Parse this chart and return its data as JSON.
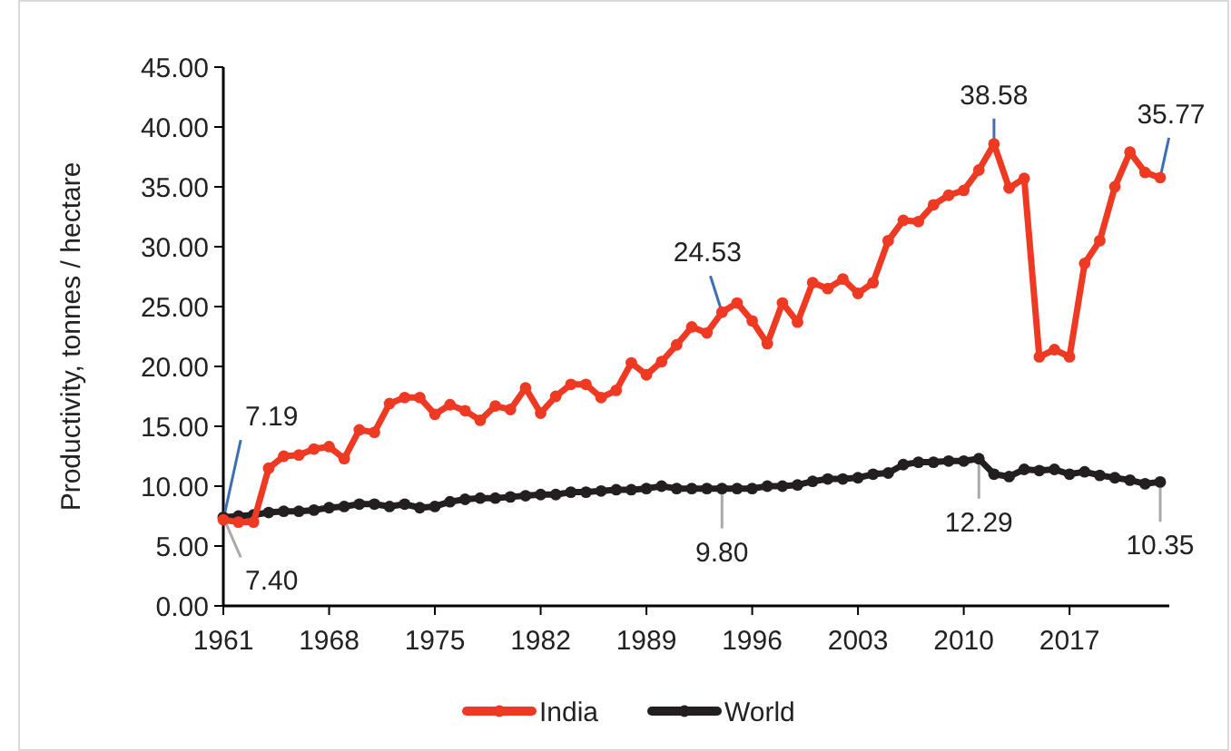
{
  "chart_data": {
    "type": "line",
    "ylabel": "Productivity, tonnes / hectare",
    "x": [
      1961,
      1962,
      1963,
      1964,
      1965,
      1966,
      1967,
      1968,
      1969,
      1970,
      1971,
      1972,
      1973,
      1974,
      1975,
      1976,
      1977,
      1978,
      1979,
      1980,
      1981,
      1982,
      1983,
      1984,
      1985,
      1986,
      1987,
      1988,
      1989,
      1990,
      1991,
      1992,
      1993,
      1994,
      1995,
      1996,
      1997,
      1998,
      1999,
      2000,
      2001,
      2002,
      2003,
      2004,
      2005,
      2006,
      2007,
      2008,
      2009,
      2010,
      2011,
      2012,
      2013,
      2014,
      2015,
      2016,
      2017,
      2018,
      2019,
      2020,
      2021,
      2022,
      2023
    ],
    "series": [
      {
        "name": "India",
        "color": "#ee3a23",
        "values": [
          7.19,
          7.0,
          7.0,
          11.5,
          12.5,
          12.6,
          13.1,
          13.3,
          12.3,
          14.7,
          14.5,
          16.9,
          17.4,
          17.4,
          16.0,
          16.8,
          16.3,
          15.5,
          16.7,
          16.4,
          18.2,
          16.1,
          17.5,
          18.5,
          18.5,
          17.4,
          18.0,
          20.3,
          19.3,
          20.4,
          21.8,
          23.3,
          22.8,
          24.53,
          25.3,
          23.8,
          21.9,
          25.3,
          23.7,
          27.0,
          26.5,
          27.3,
          26.1,
          27.0,
          30.5,
          32.2,
          32.1,
          33.5,
          34.3,
          34.7,
          36.4,
          38.58,
          34.9,
          35.7,
          20.8,
          21.4,
          20.8,
          28.6,
          30.5,
          35.0,
          37.9,
          36.2,
          35.77
        ]
      },
      {
        "name": "World",
        "color": "#231f20",
        "values": [
          7.4,
          7.5,
          7.6,
          7.8,
          7.9,
          7.9,
          8.0,
          8.2,
          8.3,
          8.5,
          8.5,
          8.3,
          8.5,
          8.2,
          8.3,
          8.7,
          8.9,
          9.0,
          9.0,
          9.1,
          9.2,
          9.3,
          9.3,
          9.5,
          9.5,
          9.6,
          9.7,
          9.7,
          9.8,
          10.0,
          9.8,
          9.8,
          9.8,
          9.8,
          9.8,
          9.8,
          10.0,
          10.0,
          10.1,
          10.4,
          10.6,
          10.6,
          10.7,
          11.0,
          11.1,
          11.8,
          12.0,
          12.0,
          12.1,
          12.1,
          12.29,
          11.0,
          10.8,
          11.4,
          11.3,
          11.4,
          11.0,
          11.2,
          10.9,
          10.7,
          10.5,
          10.2,
          10.35
        ]
      }
    ],
    "xlim": [
      1961,
      2023.6
    ],
    "xticks": [
      1961,
      1968,
      1975,
      1982,
      1989,
      1996,
      2003,
      2010,
      2017
    ],
    "ylim": [
      0,
      45
    ],
    "yticks": [
      {
        "value": 0,
        "label": "0.00"
      },
      {
        "value": 5,
        "label": "5.00"
      },
      {
        "value": 10,
        "label": "10.00"
      },
      {
        "value": 15,
        "label": "15.00"
      },
      {
        "value": 20,
        "label": "20.00"
      },
      {
        "value": 25,
        "label": "25.00"
      },
      {
        "value": 30,
        "label": "30.00"
      },
      {
        "value": 35,
        "label": "35.00"
      },
      {
        "value": 40,
        "label": "40.00"
      },
      {
        "value": 45,
        "label": "45.00"
      }
    ],
    "annotations": [
      {
        "text": "7.19",
        "x": 1961,
        "y": 7.19
      },
      {
        "text": "7.40",
        "x": 1961,
        "y": 7.4
      },
      {
        "text": "24.53",
        "x": 1994,
        "y": 24.53
      },
      {
        "text": "38.58",
        "x": 2012,
        "y": 38.58
      },
      {
        "text": "35.77",
        "x": 2023,
        "y": 35.77
      },
      {
        "text": "9.80",
        "x": 1994,
        "y": 9.8
      },
      {
        "text": "12.29",
        "x": 2011,
        "y": 12.29
      },
      {
        "text": "10.35",
        "x": 2023,
        "y": 10.35
      }
    ],
    "grid": false,
    "legend": "bottom",
    "marker": "circle",
    "line_style": "solid"
  }
}
